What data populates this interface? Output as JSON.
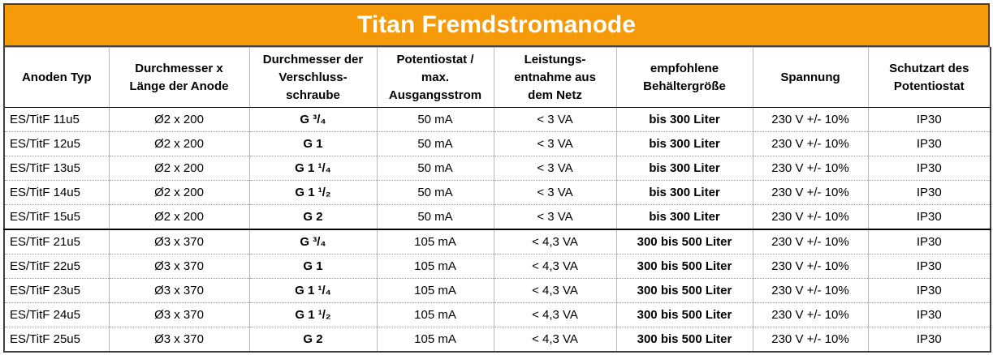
{
  "header": {
    "title": "Titan Fremdstromanode"
  },
  "table": {
    "columns": [
      "Anoden Typ",
      "Durchmesser x\nLänge der Anode",
      "Durchmesser der\nVerschluss-\nschraube",
      "Potentiostat /\nmax.\nAusgangsstrom",
      "Leistungs-\nentnahme aus\ndem Netz",
      "empfohlene\nBehältergröße",
      "Spannung",
      "Schutzart des\nPotentiostat"
    ],
    "rows": [
      [
        "ES/TitF 11u5",
        "Ø2 x 200",
        "G ³/₄",
        "50 mA",
        "< 3 VA",
        "bis 300 Liter",
        "230 V +/- 10%",
        "IP30"
      ],
      [
        "ES/TitF 12u5",
        "Ø2 x 200",
        "G 1",
        "50 mA",
        "< 3 VA",
        "bis 300 Liter",
        "230 V +/- 10%",
        "IP30"
      ],
      [
        "ES/TitF 13u5",
        "Ø2 x 200",
        "G 1 ¹/₄",
        "50 mA",
        "< 3 VA",
        "bis 300 Liter",
        "230 V +/- 10%",
        "IP30"
      ],
      [
        "ES/TitF 14u5",
        "Ø2 x 200",
        "G 1 ¹/₂",
        "50 mA",
        "< 3 VA",
        "bis 300 Liter",
        "230 V +/- 10%",
        "IP30"
      ],
      [
        "ES/TitF 15u5",
        "Ø2 x 200",
        "G 2",
        "50 mA",
        "< 3 VA",
        "bis 300 Liter",
        "230 V +/- 10%",
        "IP30"
      ],
      [
        "ES/TitF 21u5",
        "Ø3 x 370",
        "G ³/₄",
        "105 mA",
        "< 4,3 VA",
        "300 bis 500 Liter",
        "230 V +/- 10%",
        "IP30"
      ],
      [
        "ES/TitF 22u5",
        "Ø3 x 370",
        "G 1",
        "105 mA",
        "< 4,3 VA",
        "300 bis 500 Liter",
        "230 V +/- 10%",
        "IP30"
      ],
      [
        "ES/TitF 23u5",
        "Ø3 x 370",
        "G 1 ¹/₄",
        "105 mA",
        "< 4,3 VA",
        "300 bis 500 Liter",
        "230 V +/- 10%",
        "IP30"
      ],
      [
        "ES/TitF 24u5",
        "Ø3 x 370",
        "G 1 ¹/₂",
        "105 mA",
        "< 4,3 VA",
        "300 bis 500 Liter",
        "230 V +/- 10%",
        "IP30"
      ],
      [
        "ES/TitF 25u5",
        "Ø3 x 370",
        "G 2",
        "105 mA",
        "< 4,3 VA",
        "300 bis 500 Liter",
        "230 V +/- 10%",
        "IP30"
      ]
    ]
  }
}
